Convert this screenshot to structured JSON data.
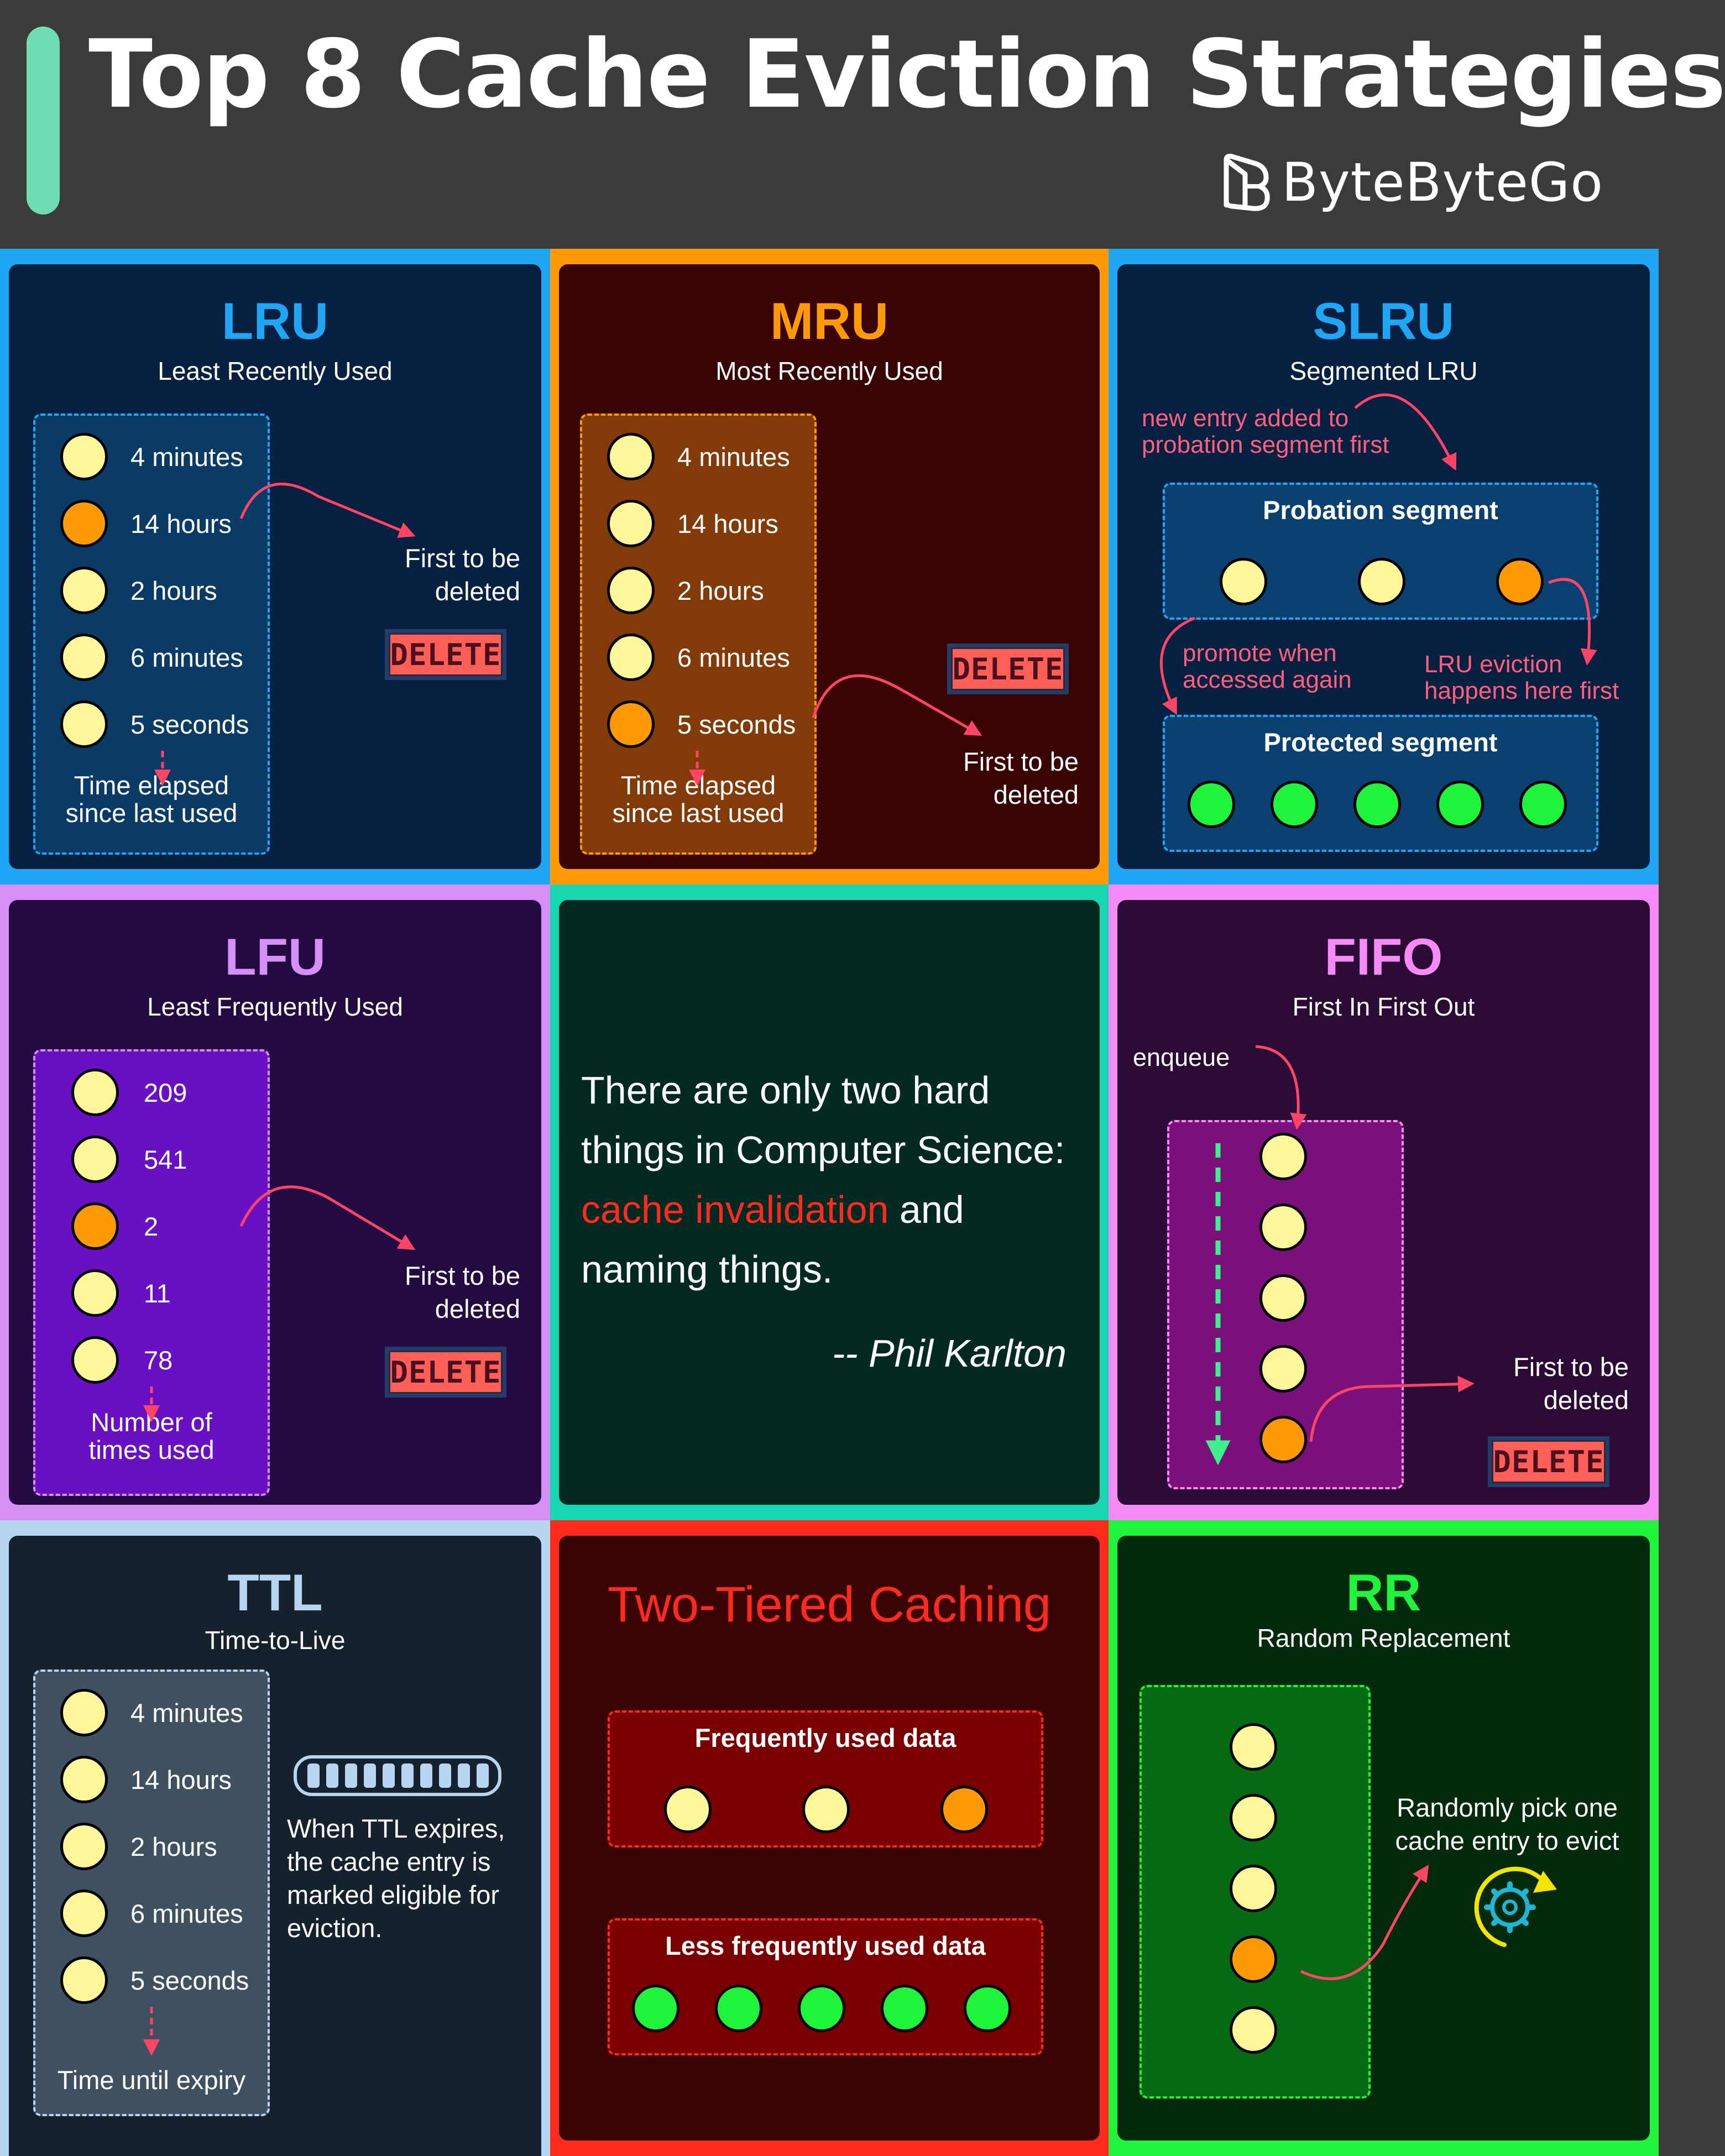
{
  "header": {
    "title": "Top 8 Cache Eviction Strategies",
    "brand": "ByteByteGo",
    "accent_color": "#6fdcb4"
  },
  "common": {
    "delete_label": "DELETE",
    "first_deleted_line1": "First to be",
    "first_deleted_line2": "deleted"
  },
  "lru": {
    "title": "LRU",
    "subtitle": "Least Recently Used",
    "items": [
      "4 minutes",
      "14 hours",
      "2 hours",
      "6 minutes",
      "5 seconds"
    ],
    "caption_line1": "Time elapsed",
    "caption_line2": "since last used",
    "color": "#1fa6f5"
  },
  "mru": {
    "title": "MRU",
    "subtitle": "Most Recently Used",
    "items": [
      "4 minutes",
      "14 hours",
      "2 hours",
      "6 minutes",
      "5 seconds"
    ],
    "caption_line1": "Time elapsed",
    "caption_line2": "since last used",
    "color": "#ff9a05"
  },
  "slru": {
    "title": "SLRU",
    "subtitle": "Segmented LRU",
    "new_entry_line1": "new entry added to",
    "new_entry_line2": "probation segment first",
    "probation_label": "Probation segment",
    "promote_line1": "promote when",
    "promote_line2": "accessed again",
    "eviction_line1": "LRU eviction",
    "eviction_line2": "happens here first",
    "protected_label": "Protected segment",
    "color": "#1fa6f5"
  },
  "lfu": {
    "title": "LFU",
    "subtitle": "Least Frequently Used",
    "items": [
      "209",
      "541",
      "2",
      "11",
      "78"
    ],
    "caption_line1": "Number of",
    "caption_line2": "times used",
    "color": "#d58ff5"
  },
  "quote": {
    "line1": "There are only two hard",
    "line2": "things in Computer Science:",
    "highlight": "cache invalidation",
    "after_highlight": " and",
    "line4": "naming things.",
    "author": "-- Phil Karlton",
    "highlight_color": "#ff2a1e"
  },
  "fifo": {
    "title": "FIFO",
    "subtitle": "First In First Out",
    "enqueue": "enqueue",
    "color": "#f68af6"
  },
  "ttl": {
    "title": "TTL",
    "subtitle": "Time-to-Live",
    "items": [
      "4 minutes",
      "14 hours",
      "2 hours",
      "6 minutes",
      "5 seconds"
    ],
    "caption": "Time until expiry",
    "note_line1": "When TTL expires,",
    "note_line2": "the cache entry is",
    "note_line3": "marked eligible for",
    "note_line4": "eviction.",
    "color": "#b7d4f0"
  },
  "two_tier": {
    "title": "Two-Tiered Caching",
    "frequent_label": "Frequently used data",
    "less_frequent_label": "Less frequently used data",
    "color": "#ff2a1e"
  },
  "rr": {
    "title": "RR",
    "subtitle": "Random Replacement",
    "note_line1": "Randomly pick one",
    "note_line2": "cache entry to evict",
    "color": "#1ff43a"
  }
}
